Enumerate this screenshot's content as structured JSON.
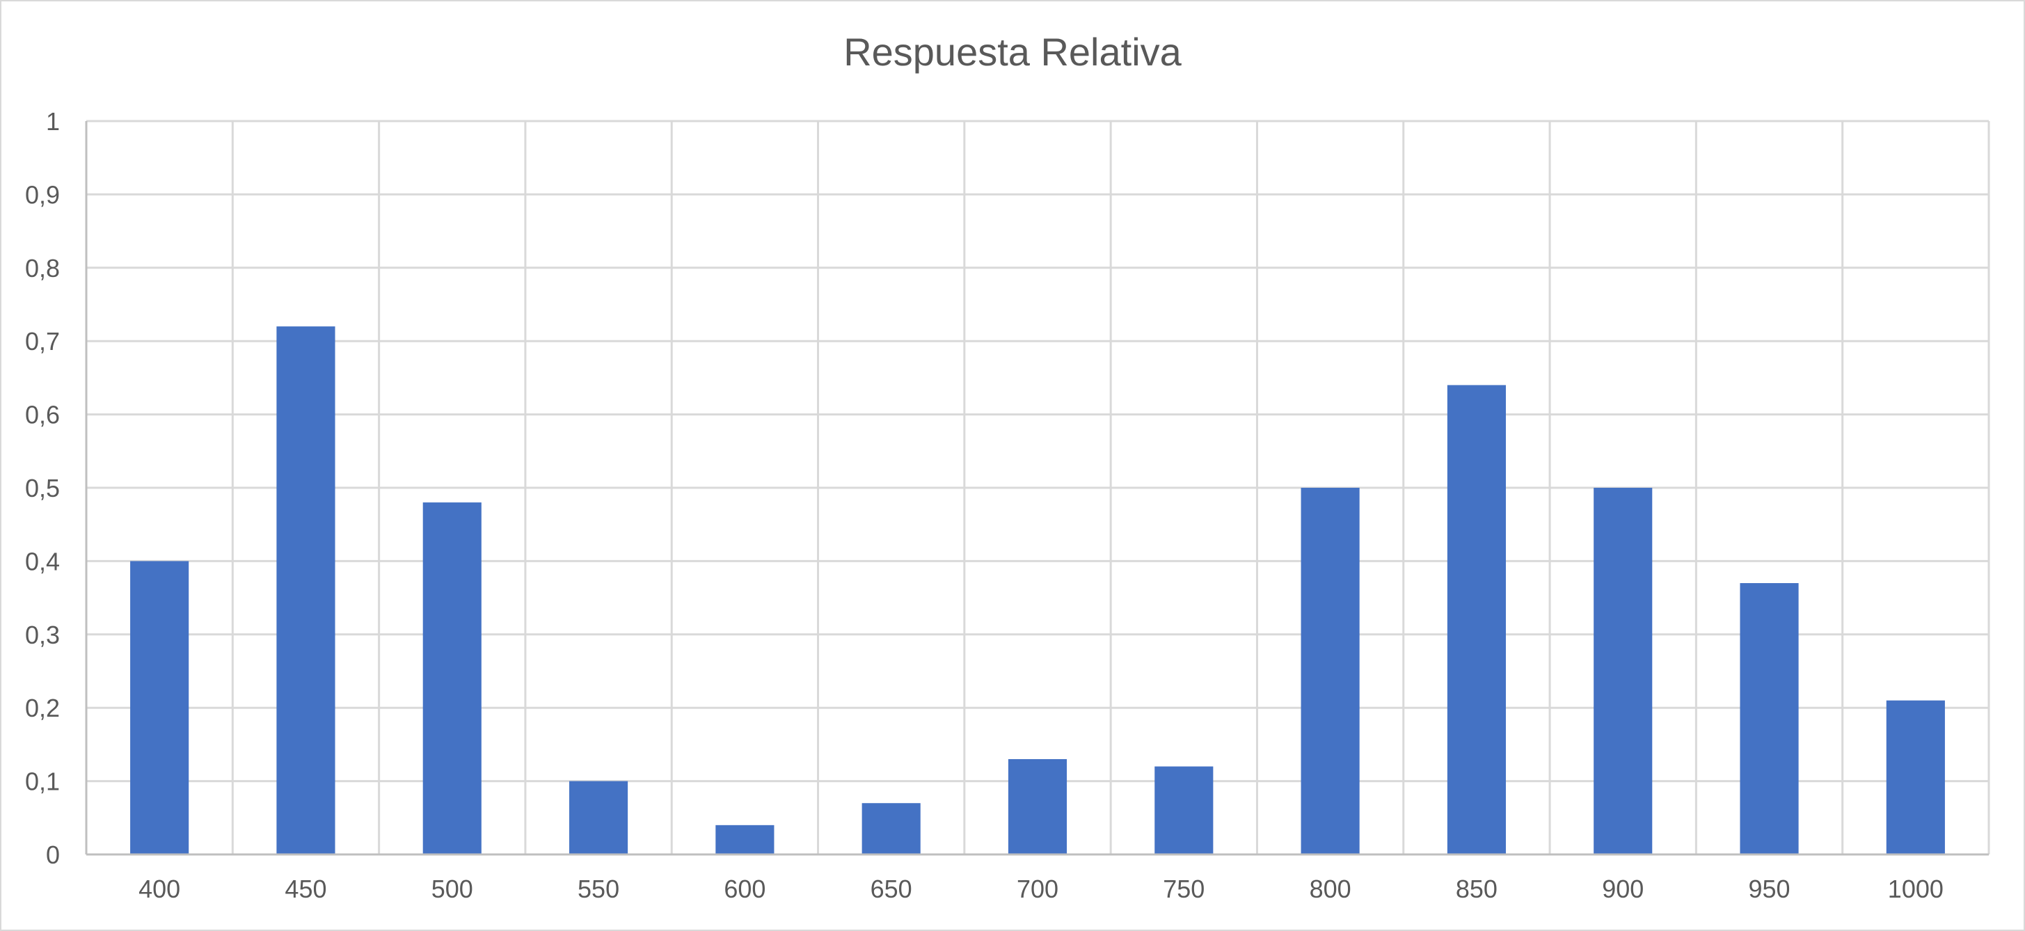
{
  "chart_data": {
    "type": "bar",
    "title": "Respuesta Relativa",
    "xlabel": "",
    "ylabel": "",
    "categories": [
      "400",
      "450",
      "500",
      "550",
      "600",
      "650",
      "700",
      "750",
      "800",
      "850",
      "900",
      "950",
      "1000"
    ],
    "values": [
      0.4,
      0.72,
      0.48,
      0.1,
      0.04,
      0.07,
      0.13,
      0.12,
      0.5,
      0.64,
      0.5,
      0.37,
      0.21
    ],
    "ylim": [
      0,
      1
    ],
    "yticks": [
      "0",
      "0,1",
      "0,2",
      "0,3",
      "0,4",
      "0,5",
      "0,6",
      "0,7",
      "0,8",
      "0,9",
      "1"
    ],
    "grid": true,
    "legend": "none",
    "bar_color": "#4472c4"
  }
}
